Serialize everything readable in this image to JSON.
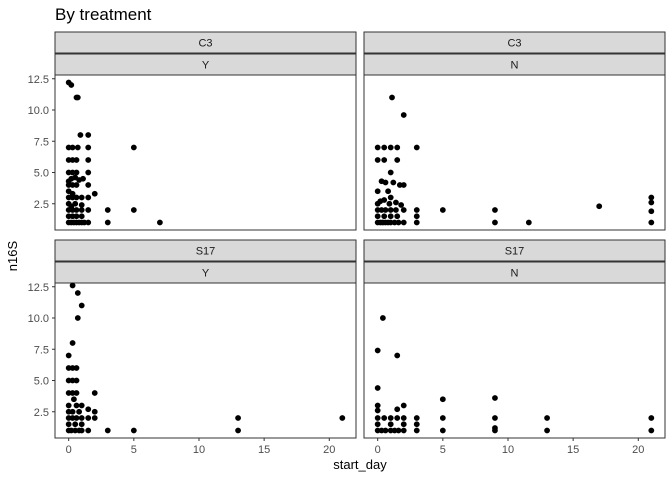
{
  "chart_data": {
    "type": "scatter",
    "title": "By treatment",
    "xlabel": "start_day",
    "ylabel": "n16S",
    "xlim": [
      -1.05,
      22.05
    ],
    "ylim": [
      0.4,
      12.8
    ],
    "x_ticks": [
      0,
      5,
      10,
      15,
      20
    ],
    "x_tick_labels": [
      "0",
      "5",
      "10",
      "15",
      "20"
    ],
    "y_ticks": [
      2.5,
      5.0,
      7.5,
      10.0,
      12.5
    ],
    "y_tick_labels": [
      "2.5",
      "5.0",
      "7.5",
      "10.0",
      "12.5"
    ],
    "grid": false,
    "panels": [
      {
        "row": 0,
        "col": 0,
        "strip_top": "C3",
        "strip_bottom": "Y",
        "points": [
          [
            0.0,
            12.2
          ],
          [
            0.2,
            12.0
          ],
          [
            0.6,
            11.0
          ],
          [
            0.7,
            11.0
          ],
          [
            0.9,
            8.0
          ],
          [
            1.5,
            8.0
          ],
          [
            0.0,
            7.0
          ],
          [
            0.3,
            7.0
          ],
          [
            0.7,
            7.0
          ],
          [
            1.5,
            7.0
          ],
          [
            5.0,
            7.0
          ],
          [
            0.0,
            6.0
          ],
          [
            0.3,
            6.0
          ],
          [
            0.6,
            6.0
          ],
          [
            1.5,
            6.0
          ],
          [
            0.0,
            5.0
          ],
          [
            0.3,
            5.0
          ],
          [
            0.6,
            5.0
          ],
          [
            1.5,
            5.0
          ],
          [
            0.0,
            4.3
          ],
          [
            0.2,
            4.5
          ],
          [
            0.5,
            4.6
          ],
          [
            0.8,
            4.4
          ],
          [
            1.1,
            4.5
          ],
          [
            0.0,
            4.0
          ],
          [
            0.3,
            4.0
          ],
          [
            0.6,
            4.0
          ],
          [
            1.5,
            4.0
          ],
          [
            0.0,
            3.5
          ],
          [
            0.3,
            3.3
          ],
          [
            2.0,
            3.3
          ],
          [
            0.0,
            3.0
          ],
          [
            0.3,
            3.0
          ],
          [
            0.6,
            3.0
          ],
          [
            1.0,
            3.0
          ],
          [
            1.5,
            3.0
          ],
          [
            0.0,
            2.5
          ],
          [
            0.2,
            2.3
          ],
          [
            0.5,
            2.5
          ],
          [
            1.0,
            2.4
          ],
          [
            0.0,
            2.0
          ],
          [
            0.3,
            2.0
          ],
          [
            0.6,
            2.0
          ],
          [
            1.0,
            2.0
          ],
          [
            1.5,
            2.0
          ],
          [
            3.0,
            2.0
          ],
          [
            5.0,
            2.0
          ],
          [
            0.0,
            1.5
          ],
          [
            0.3,
            1.5
          ],
          [
            0.6,
            1.5
          ],
          [
            1.0,
            1.5
          ],
          [
            0.0,
            1.0
          ],
          [
            0.2,
            1.0
          ],
          [
            0.4,
            1.0
          ],
          [
            0.6,
            1.0
          ],
          [
            0.8,
            1.0
          ],
          [
            1.0,
            1.0
          ],
          [
            1.2,
            1.0
          ],
          [
            1.5,
            1.0
          ],
          [
            3.0,
            1.0
          ],
          [
            7.0,
            1.0
          ]
        ]
      },
      {
        "row": 0,
        "col": 1,
        "strip_top": "C3",
        "strip_bottom": "N",
        "points": [
          [
            1.1,
            11.0
          ],
          [
            2.0,
            9.6
          ],
          [
            0.0,
            7.0
          ],
          [
            0.5,
            7.0
          ],
          [
            1.0,
            7.0
          ],
          [
            1.5,
            7.0
          ],
          [
            3.0,
            7.0
          ],
          [
            0.0,
            6.0
          ],
          [
            0.5,
            6.0
          ],
          [
            1.5,
            6.0
          ],
          [
            1.0,
            5.0
          ],
          [
            0.3,
            4.3
          ],
          [
            0.6,
            4.2
          ],
          [
            1.2,
            4.2
          ],
          [
            1.7,
            4.0
          ],
          [
            2.0,
            4.0
          ],
          [
            0.0,
            3.5
          ],
          [
            0.8,
            3.5
          ],
          [
            1.0,
            3.0
          ],
          [
            0.0,
            2.5
          ],
          [
            0.2,
            2.7
          ],
          [
            0.5,
            2.8
          ],
          [
            0.9,
            2.5
          ],
          [
            1.4,
            2.6
          ],
          [
            1.8,
            2.4
          ],
          [
            0.0,
            2.0
          ],
          [
            0.3,
            2.0
          ],
          [
            0.6,
            2.0
          ],
          [
            1.0,
            2.0
          ],
          [
            1.4,
            2.0
          ],
          [
            2.0,
            2.0
          ],
          [
            3.0,
            2.0
          ],
          [
            5.0,
            2.0
          ],
          [
            9.0,
            2.0
          ],
          [
            0.0,
            1.5
          ],
          [
            0.5,
            1.5
          ],
          [
            1.0,
            1.5
          ],
          [
            1.5,
            1.5
          ],
          [
            3.0,
            1.5
          ],
          [
            0.0,
            1.0
          ],
          [
            0.2,
            1.0
          ],
          [
            0.4,
            1.0
          ],
          [
            0.6,
            1.0
          ],
          [
            0.8,
            1.0
          ],
          [
            1.0,
            1.0
          ],
          [
            1.3,
            1.0
          ],
          [
            1.6,
            1.0
          ],
          [
            2.0,
            1.0
          ],
          [
            3.0,
            1.0
          ],
          [
            9.0,
            1.0
          ],
          [
            11.6,
            1.0
          ],
          [
            17.0,
            2.3
          ],
          [
            21.0,
            3.0
          ],
          [
            21.0,
            2.6
          ],
          [
            21.0,
            1.9
          ],
          [
            21.0,
            1.0
          ]
        ]
      },
      {
        "row": 1,
        "col": 0,
        "strip_top": "S17",
        "strip_bottom": "Y",
        "points": [
          [
            0.3,
            12.6
          ],
          [
            0.7,
            12.0
          ],
          [
            1.0,
            11.0
          ],
          [
            0.7,
            10.0
          ],
          [
            0.3,
            8.0
          ],
          [
            0.0,
            7.0
          ],
          [
            0.0,
            6.0
          ],
          [
            0.3,
            6.0
          ],
          [
            0.6,
            6.0
          ],
          [
            0.0,
            5.0
          ],
          [
            0.3,
            5.0
          ],
          [
            0.6,
            5.0
          ],
          [
            0.0,
            4.0
          ],
          [
            0.3,
            4.0
          ],
          [
            0.6,
            4.0
          ],
          [
            2.0,
            4.0
          ],
          [
            0.4,
            3.5
          ],
          [
            0.0,
            3.0
          ],
          [
            0.6,
            3.0
          ],
          [
            1.0,
            3.0
          ],
          [
            0.0,
            2.5
          ],
          [
            0.3,
            2.5
          ],
          [
            0.8,
            2.5
          ],
          [
            1.5,
            2.7
          ],
          [
            2.0,
            2.5
          ],
          [
            0.0,
            2.0
          ],
          [
            0.3,
            2.0
          ],
          [
            0.6,
            2.0
          ],
          [
            1.0,
            2.0
          ],
          [
            1.5,
            2.0
          ],
          [
            2.0,
            2.0
          ],
          [
            13.0,
            2.0
          ],
          [
            21.0,
            2.0
          ],
          [
            0.0,
            1.5
          ],
          [
            0.5,
            1.5
          ],
          [
            1.0,
            1.5
          ],
          [
            0.0,
            1.0
          ],
          [
            0.2,
            1.0
          ],
          [
            0.5,
            1.0
          ],
          [
            0.8,
            1.0
          ],
          [
            1.0,
            1.0
          ],
          [
            1.5,
            1.0
          ],
          [
            3.0,
            1.0
          ],
          [
            5.0,
            1.0
          ],
          [
            13.0,
            1.0
          ]
        ]
      },
      {
        "row": 1,
        "col": 1,
        "strip_top": "S17",
        "strip_bottom": "N",
        "points": [
          [
            0.4,
            10.0
          ],
          [
            0.0,
            7.4
          ],
          [
            1.5,
            7.0
          ],
          [
            0.0,
            4.4
          ],
          [
            5.0,
            3.5
          ],
          [
            9.0,
            3.6
          ],
          [
            0.0,
            3.0
          ],
          [
            2.0,
            3.0
          ],
          [
            0.0,
            2.6
          ],
          [
            1.5,
            2.7
          ],
          [
            0.0,
            2.0
          ],
          [
            0.5,
            2.0
          ],
          [
            1.0,
            2.0
          ],
          [
            1.5,
            2.0
          ],
          [
            2.0,
            2.0
          ],
          [
            3.0,
            2.0
          ],
          [
            5.0,
            2.0
          ],
          [
            9.0,
            2.0
          ],
          [
            13.0,
            2.0
          ],
          [
            21.0,
            2.0
          ],
          [
            0.0,
            1.5
          ],
          [
            1.0,
            1.5
          ],
          [
            2.0,
            1.5
          ],
          [
            3.0,
            1.5
          ],
          [
            0.0,
            1.0
          ],
          [
            0.3,
            1.0
          ],
          [
            0.6,
            1.0
          ],
          [
            1.0,
            1.0
          ],
          [
            1.3,
            1.0
          ],
          [
            1.6,
            1.0
          ],
          [
            2.0,
            1.0
          ],
          [
            3.0,
            1.0
          ],
          [
            5.0,
            1.0
          ],
          [
            9.0,
            1.0
          ],
          [
            9.0,
            1.2
          ],
          [
            13.0,
            1.0
          ],
          [
            21.0,
            1.0
          ]
        ]
      }
    ]
  }
}
